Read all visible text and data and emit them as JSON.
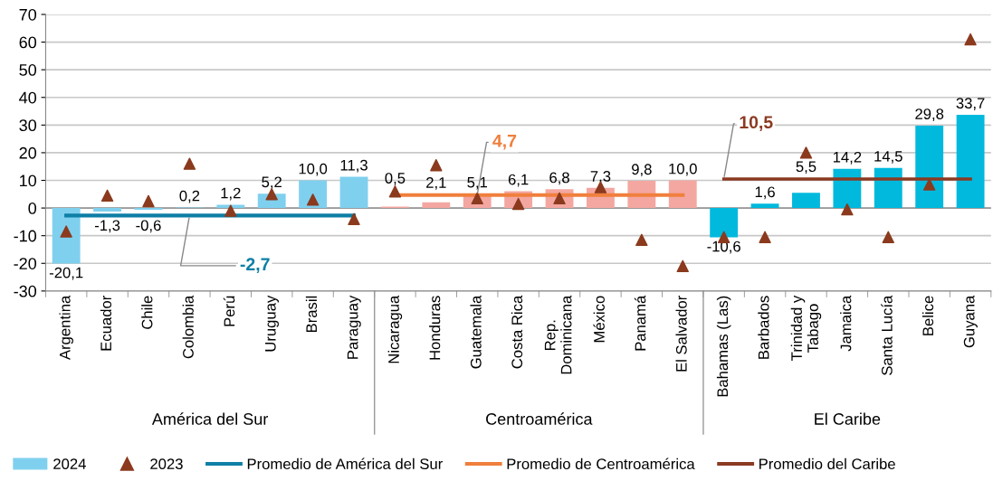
{
  "chart_data": {
    "type": "bar",
    "categories": [
      "Argentina",
      "Ecuador",
      "Chile",
      "Colombia",
      "Perú",
      "Uruguay",
      "Brasil",
      "Paraguay",
      "Nicaragua",
      "Honduras",
      "Guatemala",
      "Costa Rica",
      "Rep.\nDominicana",
      "México",
      "Panamá",
      "El Salvador",
      "Bahamas (Las)",
      "Barbados",
      "Trinidad y\nTabago",
      "Jamaica",
      "Santa Lucía",
      "Belice",
      "Guyana"
    ],
    "series": [
      {
        "name": "2024",
        "colors": [
          "#7fd0ee",
          "#7fd0ee",
          "#7fd0ee",
          "#7fd0ee",
          "#7fd0ee",
          "#7fd0ee",
          "#7fd0ee",
          "#7fd0ee",
          "#f4a7a1",
          "#f4a7a1",
          "#f4a7a1",
          "#f4a7a1",
          "#f4a7a1",
          "#f4a7a1",
          "#f4a7a1",
          "#f4a7a1",
          "#00b9dd",
          "#00b9dd",
          "#00b9dd",
          "#00b9dd",
          "#00b9dd",
          "#00b9dd",
          "#00b9dd"
        ],
        "color": "#7fd0ee",
        "values": [
          -20.1,
          -1.3,
          -0.6,
          0.2,
          1.2,
          5.2,
          10.0,
          11.3,
          0.5,
          2.1,
          5.1,
          6.1,
          6.8,
          7.3,
          9.8,
          10.0,
          -10.6,
          1.6,
          5.5,
          14.2,
          14.5,
          29.8,
          33.7
        ],
        "value_labels": [
          "-20,1",
          "-1,3",
          "-0,6",
          "0,2",
          "1,2",
          "5,2",
          "10,0",
          "11,3",
          "0,5",
          "2,1",
          "5,1",
          "6,1",
          "6,8",
          "7,3",
          "9,8",
          "10,0",
          "-10,6",
          "1,6",
          "5,5",
          "14,2",
          "14,5",
          "29,8",
          "33,7"
        ]
      },
      {
        "name": "2023",
        "type": "scatter",
        "color": "#8b3a1e",
        "marker": "triangle",
        "values": [
          -8.5,
          4.5,
          2.5,
          16,
          -1,
          5,
          3,
          -4,
          6,
          15.5,
          3.5,
          1.5,
          3.5,
          7.5,
          -11.5,
          -21,
          -10.5,
          -10.5,
          20,
          -0.5,
          -10.5,
          8.5,
          61
        ]
      },
      {
        "name": "Promedio de América del Sur",
        "type": "line",
        "color": "#0e7fa6",
        "values": [
          -2.7,
          -2.7,
          -2.7,
          -2.7,
          -2.7,
          -2.7,
          -2.7,
          -2.7,
          null,
          null,
          null,
          null,
          null,
          null,
          null,
          null,
          null,
          null,
          null,
          null,
          null,
          null,
          null
        ]
      },
      {
        "name": "Promedio de Centroamérica",
        "type": "line",
        "color": "#f07f3c",
        "values": [
          null,
          null,
          null,
          null,
          null,
          null,
          null,
          null,
          4.7,
          4.7,
          4.7,
          4.7,
          4.7,
          4.7,
          4.7,
          4.7,
          null,
          null,
          null,
          null,
          null,
          null,
          null
        ]
      },
      {
        "name": "Promedio del Caribe",
        "type": "line",
        "color": "#8b3a22",
        "values": [
          null,
          null,
          null,
          null,
          null,
          null,
          null,
          null,
          null,
          null,
          null,
          null,
          null,
          null,
          null,
          null,
          10.5,
          10.5,
          10.5,
          10.5,
          10.5,
          10.5,
          10.5
        ]
      }
    ],
    "annotations": [
      {
        "text": "-2,7",
        "x": "Colombia",
        "y": -2.7
      },
      {
        "text": "4,7",
        "x": "Guatemala",
        "y": 4.7
      },
      {
        "text": "10,5",
        "x": "Bahamas (Las)",
        "y": 10.5
      },
      "América del Sur",
      "Centroamérica",
      "El Caribe"
    ],
    "ylim": [
      -30,
      70
    ],
    "yticks": [
      -30,
      -20,
      -10,
      0,
      10,
      20,
      30,
      40,
      50,
      60,
      70
    ],
    "grid": "y",
    "legend": "bottom"
  }
}
